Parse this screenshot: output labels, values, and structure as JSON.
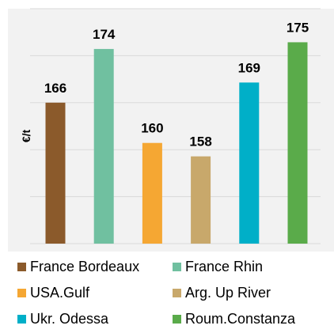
{
  "chart_data": {
    "type": "bar",
    "title": "",
    "xlabel": "",
    "ylabel": "€/t",
    "categories": [
      "France Bordeaux",
      "France Rhin",
      "USA.Gulf",
      "Arg. Up River",
      "Ukr. Odessa",
      "Roum.Constanza"
    ],
    "values": [
      166,
      174,
      160,
      158,
      169,
      175
    ],
    "data_labels": [
      "166",
      "174",
      "160",
      "158",
      "169",
      "175"
    ],
    "colors": [
      "#8B5A2B",
      "#70C0A0",
      "#F5A733",
      "#C8A86B",
      "#00AFC8",
      "#5AAB4A"
    ],
    "ylim": [
      145,
      180
    ],
    "gridlines": [
      152,
      159,
      166,
      173,
      180
    ],
    "grid": true,
    "legend_position": "bottom",
    "plot_background": "#F2F2F2"
  }
}
